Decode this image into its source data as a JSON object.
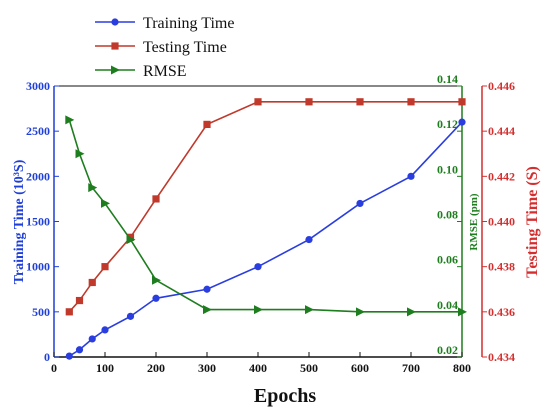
{
  "chart_data": {
    "type": "line",
    "xlabel": "Epochs",
    "ylabel_left": "Training Time (10³S)",
    "ylabel_right_inner": "RMSE (pm)",
    "ylabel_right_outer": "Testing Time (S)",
    "xlim": [
      0,
      800
    ],
    "x_ticks": [
      0,
      100,
      200,
      300,
      400,
      500,
      600,
      700,
      800
    ],
    "y_axes": {
      "left": {
        "range": [
          0,
          3000
        ],
        "ticks": [
          0,
          500,
          1000,
          1500,
          2000,
          2500,
          3000
        ],
        "color": "#1f3fd6",
        "decimals": 0
      },
      "right_inner": {
        "range": [
          0.02,
          0.14
        ],
        "ticks": [
          0.02,
          0.04,
          0.06,
          0.08,
          0.1,
          0.12,
          0.14
        ],
        "color": "#1e7d1e",
        "decimals": 2
      },
      "right_outer": {
        "range": [
          0.434,
          0.446
        ],
        "ticks": [
          0.434,
          0.436,
          0.438,
          0.44,
          0.442,
          0.444,
          0.446
        ],
        "color": "#d32f2f",
        "decimals": 3
      }
    },
    "legend_position": "top-center",
    "grid": false,
    "series": [
      {
        "name": "Training Time",
        "axis": "left",
        "color": "#2a3ee0",
        "marker": "circle",
        "x": [
          30,
          50,
          75,
          100,
          150,
          200,
          300,
          400,
          500,
          600,
          700,
          800
        ],
        "y": [
          10,
          80,
          200,
          300,
          450,
          650,
          750,
          1000,
          1300,
          1700,
          2000,
          2600
        ]
      },
      {
        "name": "Testing Time",
        "axis": "right_outer",
        "color": "#c0392b",
        "marker": "square",
        "x": [
          30,
          50,
          75,
          100,
          150,
          200,
          300,
          400,
          500,
          600,
          700,
          800
        ],
        "y": [
          0.436,
          0.4365,
          0.4373,
          0.438,
          0.4393,
          0.441,
          0.4443,
          0.4453,
          0.4453,
          0.4453,
          0.4453,
          0.4453
        ]
      },
      {
        "name": "RMSE",
        "axis": "right_inner",
        "color": "#1e7d1e",
        "marker": "triangle-right",
        "x": [
          30,
          50,
          75,
          100,
          150,
          200,
          300,
          400,
          500,
          600,
          700,
          800
        ],
        "y": [
          0.125,
          0.11,
          0.095,
          0.088,
          0.072,
          0.054,
          0.041,
          0.041,
          0.041,
          0.04,
          0.04,
          0.04
        ]
      }
    ]
  }
}
